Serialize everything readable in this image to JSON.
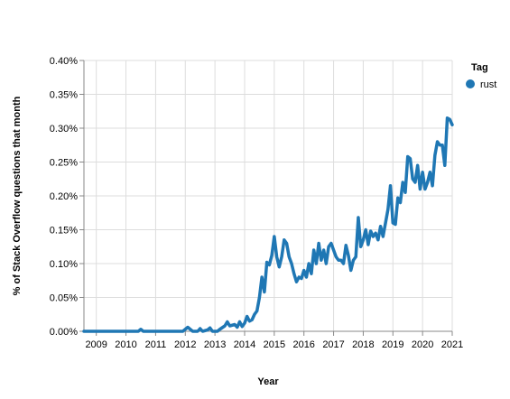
{
  "chart_data": {
    "type": "line",
    "xlabel": "Year",
    "ylabel": "% of Stack Overflow questions that month",
    "x_ticks": [
      "2009",
      "2010",
      "2011",
      "2012",
      "2013",
      "2014",
      "2015",
      "2016",
      "2017",
      "2018",
      "2019",
      "2020",
      "2021"
    ],
    "y_ticks": [
      "0.00%",
      "0.05%",
      "0.10%",
      "0.15%",
      "0.20%",
      "0.25%",
      "0.30%",
      "0.35%",
      "0.40%"
    ],
    "xlim": [
      "2008-08",
      "2021-01"
    ],
    "ylim": [
      0,
      0.4
    ],
    "grid": true,
    "legend": {
      "title": "Tag",
      "position": "top-right"
    },
    "colors": {
      "rust": "#1f77b4",
      "grid": "#dddddd",
      "axis": "#888888"
    },
    "series": [
      {
        "name": "rust",
        "points": [
          [
            "2008-08",
            0.0
          ],
          [
            "2008-12",
            0.0
          ],
          [
            "2009-06",
            0.0
          ],
          [
            "2009-12",
            0.0
          ],
          [
            "2010-06",
            0.0
          ],
          [
            "2010-07",
            0.003
          ],
          [
            "2010-08",
            0.0
          ],
          [
            "2010-12",
            0.0
          ],
          [
            "2011-06",
            0.0
          ],
          [
            "2011-12",
            0.0
          ],
          [
            "2012-01",
            0.003
          ],
          [
            "2012-02",
            0.006
          ],
          [
            "2012-03",
            0.003
          ],
          [
            "2012-04",
            0.0
          ],
          [
            "2012-06",
            0.0
          ],
          [
            "2012-07",
            0.004
          ],
          [
            "2012-08",
            0.0
          ],
          [
            "2012-10",
            0.002
          ],
          [
            "2012-11",
            0.005
          ],
          [
            "2012-12",
            0.0
          ],
          [
            "2013-02",
            0.0
          ],
          [
            "2013-03",
            0.003
          ],
          [
            "2013-05",
            0.008
          ],
          [
            "2013-06",
            0.014
          ],
          [
            "2013-07",
            0.008
          ],
          [
            "2013-09",
            0.01
          ],
          [
            "2013-10",
            0.006
          ],
          [
            "2013-11",
            0.014
          ],
          [
            "2013-12",
            0.007
          ],
          [
            "2014-01",
            0.012
          ],
          [
            "2014-02",
            0.022
          ],
          [
            "2014-03",
            0.015
          ],
          [
            "2014-04",
            0.017
          ],
          [
            "2014-05",
            0.025
          ],
          [
            "2014-06",
            0.03
          ],
          [
            "2014-07",
            0.05
          ],
          [
            "2014-08",
            0.08
          ],
          [
            "2014-09",
            0.058
          ],
          [
            "2014-10",
            0.102
          ],
          [
            "2014-11",
            0.098
          ],
          [
            "2014-12",
            0.112
          ],
          [
            "2015-01",
            0.14
          ],
          [
            "2015-02",
            0.11
          ],
          [
            "2015-03",
            0.095
          ],
          [
            "2015-04",
            0.11
          ],
          [
            "2015-05",
            0.135
          ],
          [
            "2015-06",
            0.13
          ],
          [
            "2015-07",
            0.11
          ],
          [
            "2015-08",
            0.1
          ],
          [
            "2015-09",
            0.085
          ],
          [
            "2015-10",
            0.073
          ],
          [
            "2015-11",
            0.08
          ],
          [
            "2015-12",
            0.078
          ],
          [
            "2016-01",
            0.09
          ],
          [
            "2016-02",
            0.08
          ],
          [
            "2016-03",
            0.1
          ],
          [
            "2016-04",
            0.085
          ],
          [
            "2016-05",
            0.12
          ],
          [
            "2016-06",
            0.1
          ],
          [
            "2016-07",
            0.13
          ],
          [
            "2016-08",
            0.105
          ],
          [
            "2016-09",
            0.12
          ],
          [
            "2016-10",
            0.1
          ],
          [
            "2016-11",
            0.125
          ],
          [
            "2016-12",
            0.13
          ],
          [
            "2017-01",
            0.12
          ],
          [
            "2017-02",
            0.11
          ],
          [
            "2017-03",
            0.105
          ],
          [
            "2017-04",
            0.105
          ],
          [
            "2017-05",
            0.1
          ],
          [
            "2017-06",
            0.127
          ],
          [
            "2017-07",
            0.112
          ],
          [
            "2017-08",
            0.09
          ],
          [
            "2017-09",
            0.105
          ],
          [
            "2017-10",
            0.11
          ],
          [
            "2017-11",
            0.168
          ],
          [
            "2017-12",
            0.125
          ],
          [
            "2018-01",
            0.135
          ],
          [
            "2018-02",
            0.15
          ],
          [
            "2018-03",
            0.128
          ],
          [
            "2018-04",
            0.148
          ],
          [
            "2018-05",
            0.14
          ],
          [
            "2018-06",
            0.145
          ],
          [
            "2018-07",
            0.135
          ],
          [
            "2018-08",
            0.155
          ],
          [
            "2018-09",
            0.14
          ],
          [
            "2018-10",
            0.16
          ],
          [
            "2018-11",
            0.18
          ],
          [
            "2018-12",
            0.215
          ],
          [
            "2019-01",
            0.16
          ],
          [
            "2019-02",
            0.158
          ],
          [
            "2019-03",
            0.197
          ],
          [
            "2019-04",
            0.19
          ],
          [
            "2019-05",
            0.22
          ],
          [
            "2019-06",
            0.205
          ],
          [
            "2019-07",
            0.258
          ],
          [
            "2019-08",
            0.255
          ],
          [
            "2019-09",
            0.225
          ],
          [
            "2019-10",
            0.22
          ],
          [
            "2019-11",
            0.245
          ],
          [
            "2019-12",
            0.21
          ],
          [
            "2020-01",
            0.235
          ],
          [
            "2020-02",
            0.21
          ],
          [
            "2020-03",
            0.22
          ],
          [
            "2020-04",
            0.235
          ],
          [
            "2020-05",
            0.215
          ],
          [
            "2020-06",
            0.26
          ],
          [
            "2020-07",
            0.28
          ],
          [
            "2020-08",
            0.275
          ],
          [
            "2020-09",
            0.275
          ],
          [
            "2020-10",
            0.245
          ],
          [
            "2020-11",
            0.315
          ],
          [
            "2020-12",
            0.313
          ],
          [
            "2021-01",
            0.305
          ]
        ]
      }
    ]
  }
}
